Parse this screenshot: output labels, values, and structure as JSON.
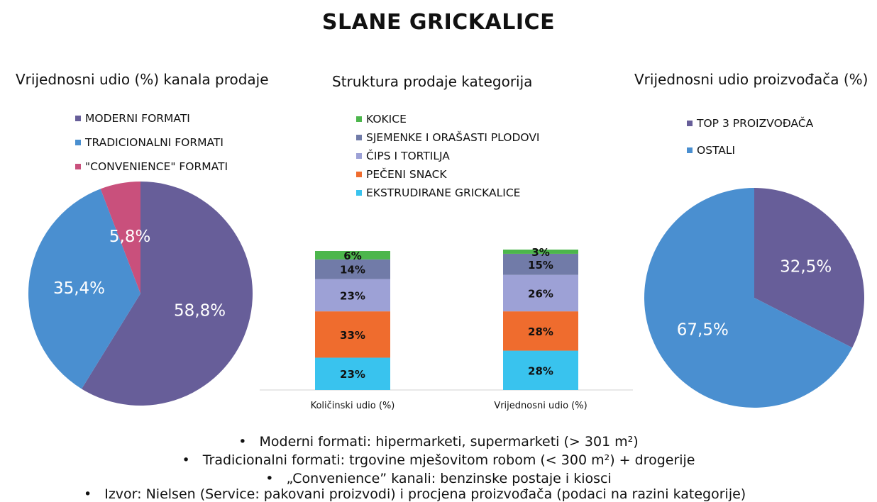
{
  "title": "SLANE GRICKALICE",
  "chart_data": [
    {
      "type": "pie",
      "title": "Vrijednosni udio (%) kanala prodaje",
      "labels": [
        "MODERNI FORMATI",
        "TRADICIONALNI FORMATI",
        "\"CONVENIENCE\" FORMATI"
      ],
      "values": [
        58.8,
        35.4,
        5.8
      ],
      "value_labels": [
        "58,8%",
        "35,4%",
        "5,8%"
      ],
      "colors": [
        "#675E99",
        "#4A8FD0",
        "#C9507C"
      ],
      "legend_position": "top"
    },
    {
      "type": "bar",
      "stacked": true,
      "title": "Struktura prodaje kategorija",
      "categories": [
        "Količinski udio (%)",
        "Vrijednosni udio (%)"
      ],
      "series": [
        {
          "name": "EKSTRUDIRANE GRICKALICE",
          "values": [
            23,
            28
          ],
          "labels": [
            "23%",
            "28%"
          ],
          "color": "#39C3EE"
        },
        {
          "name": "PEČENI SNACK",
          "values": [
            33,
            28
          ],
          "labels": [
            "33%",
            "28%"
          ],
          "color": "#EF6C2E"
        },
        {
          "name": "ČIPS I TORTILJA",
          "values": [
            23,
            26
          ],
          "labels": [
            "23%",
            "26%"
          ],
          "color": "#9DA1D6"
        },
        {
          "name": "SJEMENKE I ORAŠASTI PLODOVI",
          "values": [
            14,
            15
          ],
          "labels": [
            "14%",
            "15%"
          ],
          "color": "#717BA8"
        },
        {
          "name": "KOKICE",
          "values": [
            6,
            3
          ],
          "labels": [
            "6%",
            "3%"
          ],
          "color": "#4CB64C"
        }
      ],
      "legend_order": [
        "KOKICE",
        "SJEMENKE I ORAŠASTI PLODOVI",
        "ČIPS I TORTILJA",
        "PEČENI SNACK",
        "EKSTRUDIRANE GRICKALICE"
      ],
      "legend_position": "top"
    },
    {
      "type": "pie",
      "title": "Vrijednosni udio proizvođača (%)",
      "labels": [
        "TOP 3 PROIZVOĐAČA",
        "OSTALI"
      ],
      "values": [
        32.5,
        67.5
      ],
      "value_labels": [
        "32,5%",
        "67,5%"
      ],
      "colors": [
        "#675E99",
        "#4A8FD0"
      ],
      "legend_position": "top"
    }
  ],
  "notes": {
    "bullet": "•",
    "line1": "Moderni formati: hipermarketi, supermarketi (> 301 m²)",
    "line2": "Tradicionalni formati: trgovine mješovitom robom (< 300 m²) + drogerije",
    "line3": "„Convenience” kanali: benzinske postaje i kiosci",
    "line4": "Izvor: Nielsen (Service: pakovani proizvodi) i procjena proizvođača (podaci na razini kategorije)"
  }
}
